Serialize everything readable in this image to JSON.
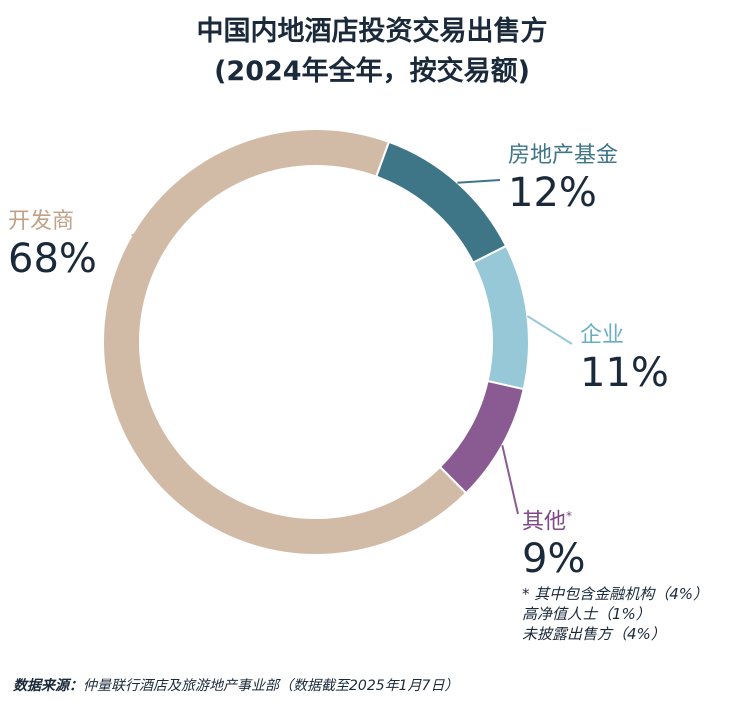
{
  "title": {
    "line1": "中国内地酒店投资交易出售方",
    "line2": "(2024年全年，按交易额)"
  },
  "chart_data": {
    "type": "pie",
    "variant": "donut",
    "unit": "%",
    "slices": [
      {
        "name": "房地产基金",
        "value": 12,
        "label": "12%",
        "color": "#3e7688",
        "name_color": "#3e7688",
        "note_marker": ""
      },
      {
        "name": "企业",
        "value": 11,
        "label": "11%",
        "color": "#96c8d8",
        "name_color": "#6aaec4",
        "note_marker": ""
      },
      {
        "name": "其他",
        "value": 9,
        "label": "9%",
        "color": "#8a5a92",
        "name_color": "#7d4a86",
        "note_marker": "*"
      },
      {
        "name": "开发商",
        "value": 68,
        "label": "68%",
        "color": "#d1bba7",
        "name_color": "#c1a287",
        "note_marker": ""
      }
    ],
    "footnote": [
      "* 其中包含金融机构（4%）",
      "高净值人士（1%）",
      "未披露出售方（4%）"
    ]
  },
  "source": {
    "label": "数据来源：",
    "text": "仲量联行酒店及旅游地产事业部（数据截至2025年1月7日）"
  }
}
